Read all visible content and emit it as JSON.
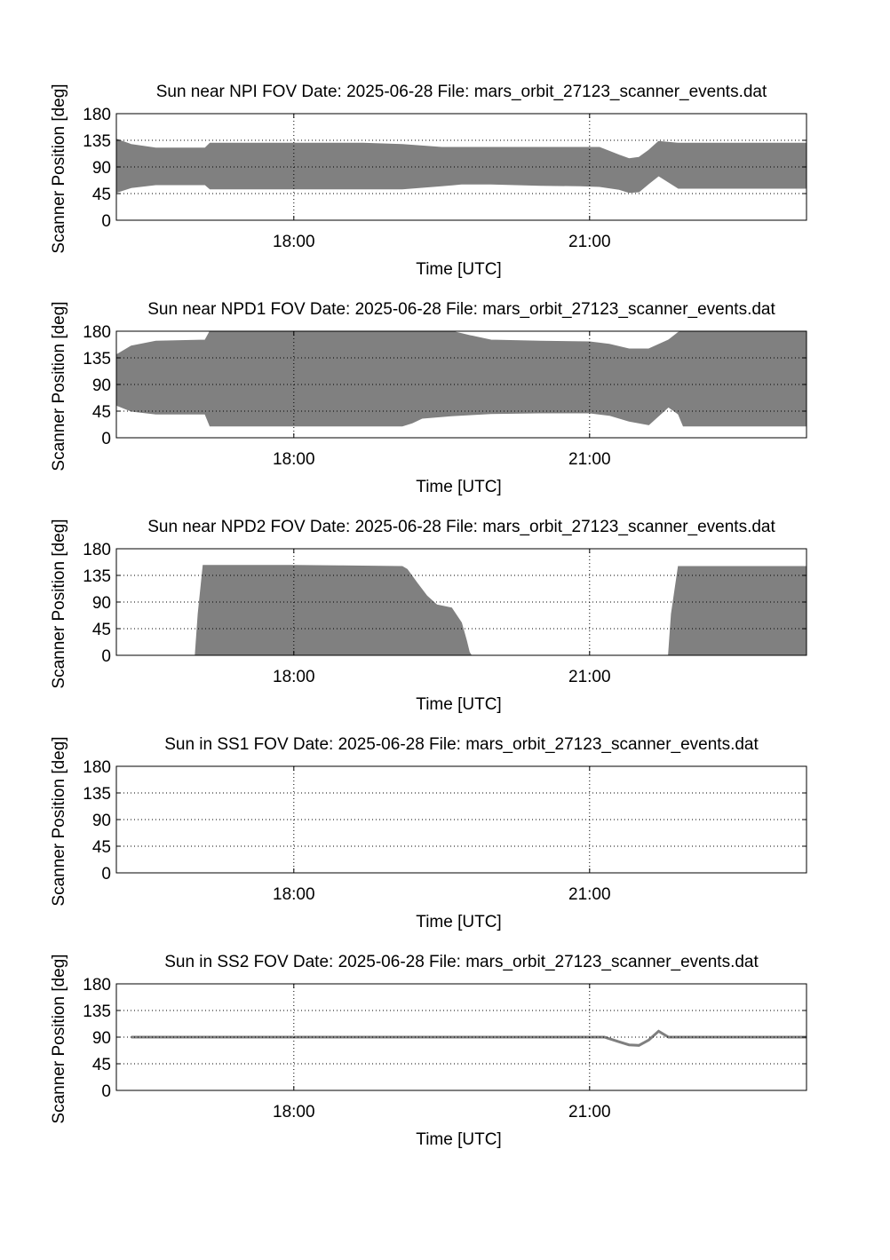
{
  "colors": {
    "fill": "#808080",
    "line": "#7f7f7f",
    "axis": "#000000",
    "grid": "#000000"
  },
  "chart_data": [
    {
      "type": "area",
      "title": "Sun near NPI FOV   Date: 2025-06-28   File: mars_orbit_27123_scanner_events.dat",
      "xlabel": "Time [UTC]",
      "ylabel": "Scanner Position [deg]",
      "xlim": [
        16.2,
        23.2
      ],
      "ylim": [
        0,
        180
      ],
      "xticks": [
        18,
        21
      ],
      "xtick_labels": [
        "18:00",
        "21:00"
      ],
      "yticks": [
        0,
        45,
        90,
        135,
        180
      ],
      "ytick_labels": [
        "0",
        "45",
        "90",
        "135",
        "180"
      ],
      "grid": true,
      "series": [
        {
          "x": [
            16.2,
            16.35,
            16.6,
            17.1,
            17.15,
            17.2,
            17.5,
            18.2,
            18.7,
            19.1,
            19.5,
            19.7,
            20.0,
            20.5,
            20.9,
            21.1,
            21.3,
            21.4,
            21.5,
            21.6,
            21.7,
            21.9,
            22.2,
            22.6,
            23.2
          ],
          "lower": [
            47,
            55,
            60,
            60,
            53,
            53,
            53,
            53,
            53,
            53,
            58,
            61,
            61,
            59,
            58,
            57,
            52,
            47,
            48,
            62,
            75,
            54,
            54,
            54,
            54
          ],
          "upper": [
            137,
            128,
            122,
            122,
            130,
            130,
            130,
            130,
            130,
            128,
            123,
            123,
            123,
            123,
            123,
            123,
            110,
            104,
            106,
            118,
            133,
            130,
            130,
            130,
            130
          ]
        }
      ]
    },
    {
      "type": "area",
      "title": "Sun near NPD1 FOV   Date: 2025-06-28   File: mars_orbit_27123_scanner_events.dat",
      "xlabel": "Time [UTC]",
      "ylabel": "Scanner Position [deg]",
      "xlim": [
        16.2,
        23.2
      ],
      "ylim": [
        0,
        180
      ],
      "xticks": [
        18,
        21
      ],
      "xtick_labels": [
        "18:00",
        "21:00"
      ],
      "yticks": [
        0,
        45,
        90,
        135,
        180
      ],
      "ytick_labels": [
        "0",
        "45",
        "90",
        "135",
        "180"
      ],
      "grid": true,
      "series": [
        {
          "x": [
            16.2,
            16.35,
            16.6,
            17.1,
            17.15,
            17.2,
            17.5,
            18.0,
            18.5,
            19.1,
            19.2,
            19.3,
            19.6,
            19.8,
            20.0,
            20.5,
            21.0,
            21.2,
            21.4,
            21.6,
            21.8,
            21.9,
            21.95,
            22.2,
            23.2
          ],
          "lower": [
            55,
            45,
            40,
            40,
            20,
            20,
            20,
            20,
            20,
            20,
            25,
            33,
            37,
            39,
            41,
            42,
            42,
            38,
            28,
            22,
            52,
            40,
            20,
            20,
            20
          ],
          "upper": [
            140,
            155,
            163,
            165,
            180,
            180,
            180,
            180,
            180,
            180,
            180,
            180,
            180,
            172,
            165,
            163,
            162,
            158,
            150,
            150,
            165,
            178,
            180,
            180,
            180
          ]
        }
      ]
    },
    {
      "type": "area",
      "title": "Sun near NPD2 FOV   Date: 2025-06-28   File: mars_orbit_27123_scanner_events.dat",
      "xlabel": "Time [UTC]",
      "ylabel": "Scanner Position [deg]",
      "xlim": [
        16.2,
        23.2
      ],
      "ylim": [
        0,
        180
      ],
      "xticks": [
        18,
        21
      ],
      "xtick_labels": [
        "18:00",
        "21:00"
      ],
      "yticks": [
        0,
        45,
        90,
        135,
        180
      ],
      "ytick_labels": [
        "0",
        "45",
        "90",
        "135",
        "180"
      ],
      "grid": true,
      "series": [
        {
          "x": [
            16.2,
            17.0,
            17.03,
            17.08,
            17.5,
            18.0,
            18.5,
            19.1,
            19.15,
            19.25,
            19.35,
            19.45,
            19.6,
            19.7,
            19.75,
            19.78,
            19.8,
            21.8,
            21.83,
            21.9,
            22.3,
            23.2
          ],
          "lower": [
            0,
            0,
            0,
            0,
            0,
            0,
            0,
            0,
            0,
            0,
            0,
            0,
            0,
            0,
            0,
            0,
            0,
            0,
            0,
            0,
            0,
            0
          ],
          "upper": [
            0,
            0,
            70,
            152,
            152,
            152,
            151,
            150,
            145,
            122,
            100,
            85,
            80,
            55,
            25,
            5,
            0,
            0,
            70,
            150,
            150,
            150
          ]
        }
      ]
    },
    {
      "type": "area",
      "title": "Sun in SS1 FOV   Date: 2025-06-28   File: mars_orbit_27123_scanner_events.dat",
      "xlabel": "Time [UTC]",
      "ylabel": "Scanner Position [deg]",
      "xlim": [
        16.2,
        23.2
      ],
      "ylim": [
        0,
        180
      ],
      "xticks": [
        18,
        21
      ],
      "xtick_labels": [
        "18:00",
        "21:00"
      ],
      "yticks": [
        0,
        45,
        90,
        135,
        180
      ],
      "ytick_labels": [
        "0",
        "45",
        "90",
        "135",
        "180"
      ],
      "grid": true,
      "series": []
    },
    {
      "type": "line",
      "title": "Sun in SS2 FOV   Date: 2025-06-28   File: mars_orbit_27123_scanner_events.dat",
      "xlabel": "Time [UTC]",
      "ylabel": "Scanner Position [deg]",
      "xlim": [
        16.2,
        23.2
      ],
      "ylim": [
        0,
        180
      ],
      "xticks": [
        18,
        21
      ],
      "xtick_labels": [
        "18:00",
        "21:00"
      ],
      "yticks": [
        0,
        45,
        90,
        135,
        180
      ],
      "ytick_labels": [
        "0",
        "45",
        "90",
        "135",
        "180"
      ],
      "grid": true,
      "series": [
        {
          "x": [
            16.35,
            17.0,
            17.5,
            18.0,
            19.0,
            20.0,
            21.0,
            21.15,
            21.3,
            21.4,
            21.5,
            21.6,
            21.7,
            21.8,
            22.0,
            22.5,
            23.2
          ],
          "y": [
            90,
            90,
            90,
            90,
            90,
            90,
            90,
            90,
            82,
            77,
            76,
            85,
            100,
            90,
            90,
            90,
            90
          ]
        }
      ]
    }
  ]
}
